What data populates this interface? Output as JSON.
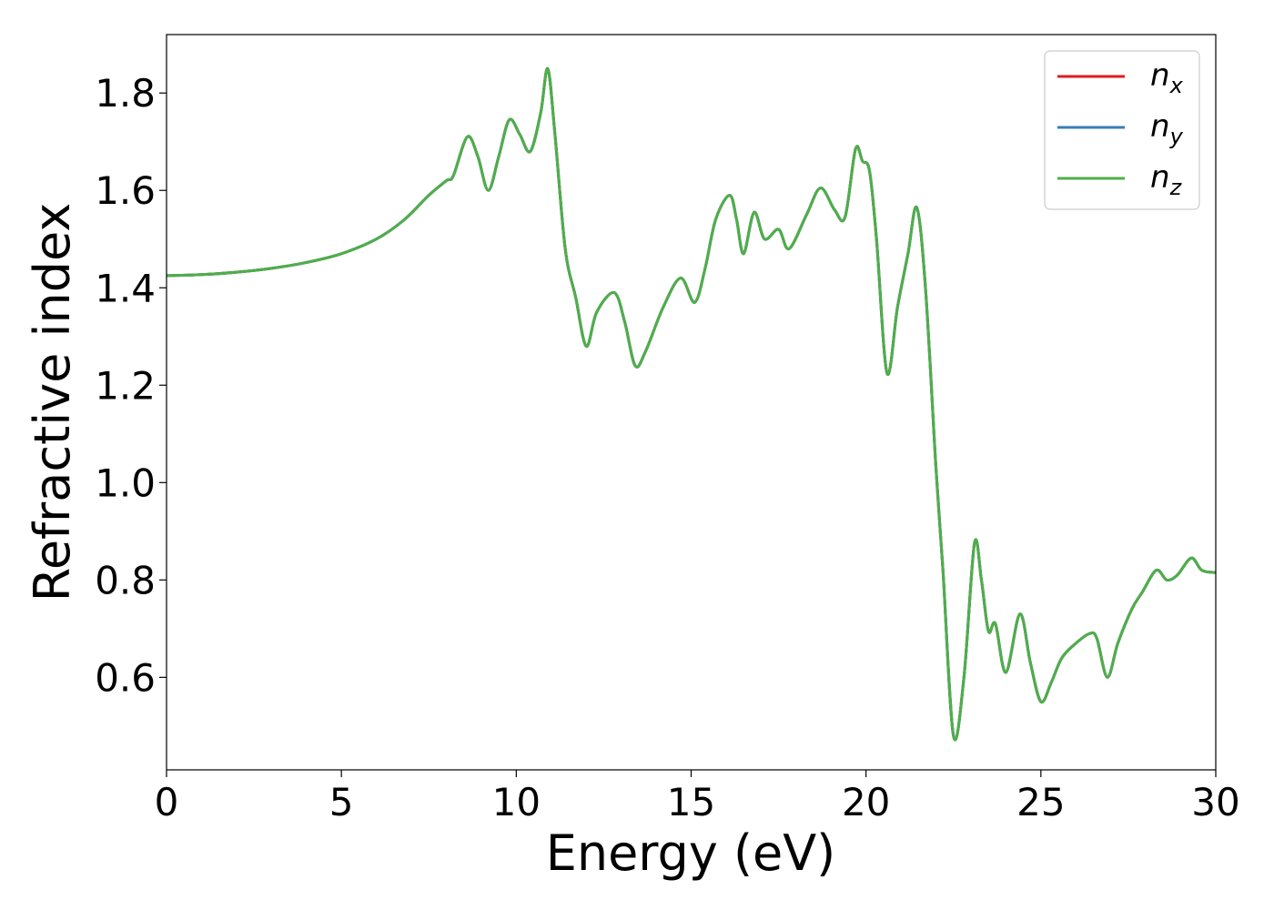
{
  "chart_data": {
    "type": "line",
    "title": "",
    "xlabel": "Energy (eV)",
    "ylabel": "Refractive index",
    "xlim": [
      0,
      30
    ],
    "ylim": [
      0.41,
      1.92
    ],
    "xticks": [
      0,
      5,
      10,
      15,
      20,
      25,
      30
    ],
    "yticks": [
      0.6,
      0.8,
      1.0,
      1.2,
      1.4,
      1.6,
      1.8
    ],
    "ytick_labels": [
      "0.6",
      "0.8",
      "1.0",
      "1.2",
      "1.4",
      "1.6",
      "1.8"
    ],
    "grid": false,
    "legend_position": "top-right",
    "x": [
      0,
      1,
      2,
      3,
      4,
      5,
      6,
      6.8,
      7.5,
      8.0,
      8.2,
      8.6,
      8.9,
      9.2,
      9.5,
      9.8,
      10.1,
      10.4,
      10.7,
      10.9,
      11.1,
      11.4,
      11.7,
      12.0,
      12.3,
      12.8,
      13.1,
      13.4,
      13.7,
      14.2,
      14.7,
      15.1,
      15.4,
      15.7,
      16.1,
      16.3,
      16.5,
      16.8,
      17.1,
      17.5,
      17.8,
      18.3,
      18.7,
      19.1,
      19.4,
      19.7,
      19.9,
      20.1,
      20.3,
      20.6,
      20.9,
      21.2,
      21.45,
      21.7,
      22.0,
      22.2,
      22.5,
      22.8,
      23.1,
      23.3,
      23.5,
      23.7,
      24.0,
      24.4,
      24.7,
      25.0,
      25.3,
      25.6,
      26.0,
      26.4,
      26.6,
      26.9,
      27.2,
      27.6,
      27.9,
      28.3,
      28.6,
      28.9,
      29.3,
      29.6,
      30.0
    ],
    "series": [
      {
        "name": "n",
        "subscript": "x",
        "color": "#e41a1c",
        "values": [
          1.425,
          1.427,
          1.432,
          1.44,
          1.452,
          1.47,
          1.5,
          1.54,
          1.59,
          1.62,
          1.63,
          1.71,
          1.67,
          1.6,
          1.67,
          1.745,
          1.715,
          1.68,
          1.76,
          1.85,
          1.72,
          1.48,
          1.38,
          1.28,
          1.35,
          1.39,
          1.33,
          1.24,
          1.27,
          1.36,
          1.42,
          1.37,
          1.44,
          1.54,
          1.59,
          1.54,
          1.47,
          1.555,
          1.5,
          1.52,
          1.48,
          1.55,
          1.605,
          1.56,
          1.545,
          1.685,
          1.66,
          1.64,
          1.5,
          1.225,
          1.36,
          1.47,
          1.565,
          1.4,
          1.03,
          0.82,
          0.48,
          0.6,
          0.875,
          0.8,
          0.695,
          0.71,
          0.61,
          0.73,
          0.63,
          0.55,
          0.59,
          0.64,
          0.67,
          0.69,
          0.68,
          0.6,
          0.67,
          0.74,
          0.775,
          0.82,
          0.8,
          0.81,
          0.845,
          0.82,
          0.815
        ]
      },
      {
        "name": "n",
        "subscript": "y",
        "color": "#377eb8",
        "values": [
          1.425,
          1.427,
          1.432,
          1.44,
          1.452,
          1.47,
          1.5,
          1.54,
          1.59,
          1.62,
          1.63,
          1.71,
          1.67,
          1.6,
          1.67,
          1.745,
          1.715,
          1.68,
          1.76,
          1.85,
          1.72,
          1.48,
          1.38,
          1.28,
          1.35,
          1.39,
          1.33,
          1.24,
          1.27,
          1.36,
          1.42,
          1.37,
          1.44,
          1.54,
          1.59,
          1.54,
          1.47,
          1.555,
          1.5,
          1.52,
          1.48,
          1.55,
          1.605,
          1.56,
          1.545,
          1.685,
          1.66,
          1.64,
          1.5,
          1.225,
          1.36,
          1.47,
          1.565,
          1.4,
          1.03,
          0.82,
          0.48,
          0.6,
          0.875,
          0.8,
          0.695,
          0.71,
          0.61,
          0.73,
          0.63,
          0.55,
          0.59,
          0.64,
          0.67,
          0.69,
          0.68,
          0.6,
          0.67,
          0.74,
          0.775,
          0.82,
          0.8,
          0.81,
          0.845,
          0.82,
          0.815
        ]
      },
      {
        "name": "n",
        "subscript": "z",
        "color": "#4daf4a",
        "values": [
          1.425,
          1.427,
          1.432,
          1.44,
          1.452,
          1.47,
          1.5,
          1.54,
          1.59,
          1.62,
          1.63,
          1.71,
          1.67,
          1.6,
          1.67,
          1.745,
          1.715,
          1.68,
          1.76,
          1.85,
          1.72,
          1.48,
          1.38,
          1.28,
          1.35,
          1.39,
          1.33,
          1.24,
          1.27,
          1.36,
          1.42,
          1.37,
          1.44,
          1.54,
          1.59,
          1.54,
          1.47,
          1.555,
          1.5,
          1.52,
          1.48,
          1.55,
          1.605,
          1.56,
          1.545,
          1.685,
          1.66,
          1.64,
          1.5,
          1.225,
          1.36,
          1.47,
          1.565,
          1.4,
          1.03,
          0.82,
          0.48,
          0.6,
          0.875,
          0.8,
          0.695,
          0.71,
          0.61,
          0.73,
          0.63,
          0.55,
          0.59,
          0.64,
          0.67,
          0.69,
          0.68,
          0.6,
          0.67,
          0.74,
          0.775,
          0.82,
          0.8,
          0.81,
          0.845,
          0.82,
          0.815
        ]
      }
    ]
  }
}
